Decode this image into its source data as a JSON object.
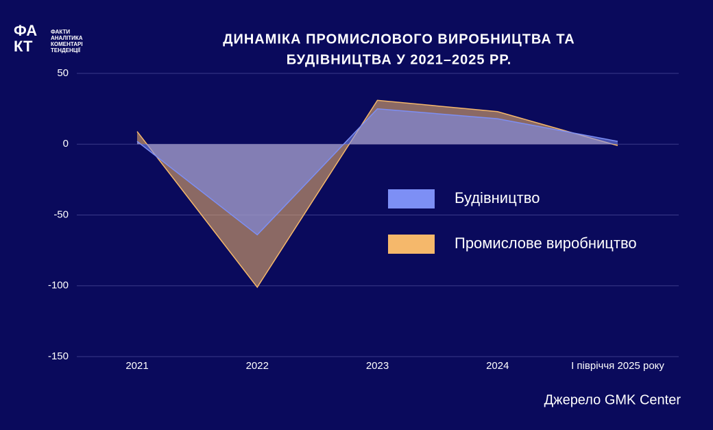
{
  "logo": {
    "mark": [
      "ФА",
      "КТ"
    ],
    "lines": [
      "ФАКТИ",
      "АНАЛІТИКА",
      "КОМЕНТАРІ",
      "ТЕНДЕНЦІЇ"
    ]
  },
  "chart_data": {
    "type": "area",
    "title": [
      "ДИНАМІКА ПРОМИСЛОВОГО ВИРОБНИЦТВА ТА",
      "БУДІВНИЦТВА У 2021–2025 РР."
    ],
    "categories": [
      "2021",
      "2022",
      "2023",
      "2024",
      "I півріччя 2025 року"
    ],
    "series": [
      {
        "name": "Будівництво",
        "color": "#7d8ff5",
        "values": [
          2,
          -64,
          25,
          18,
          2
        ]
      },
      {
        "name": "Промислове виробництво",
        "color": "#f5b86b",
        "values": [
          9,
          -101,
          31,
          23,
          -1
        ]
      }
    ],
    "ylim": [
      -150,
      50
    ],
    "yticks": [
      50,
      0,
      -50,
      -100,
      -150
    ],
    "grid": true,
    "source": "Джерело GMK Center"
  }
}
